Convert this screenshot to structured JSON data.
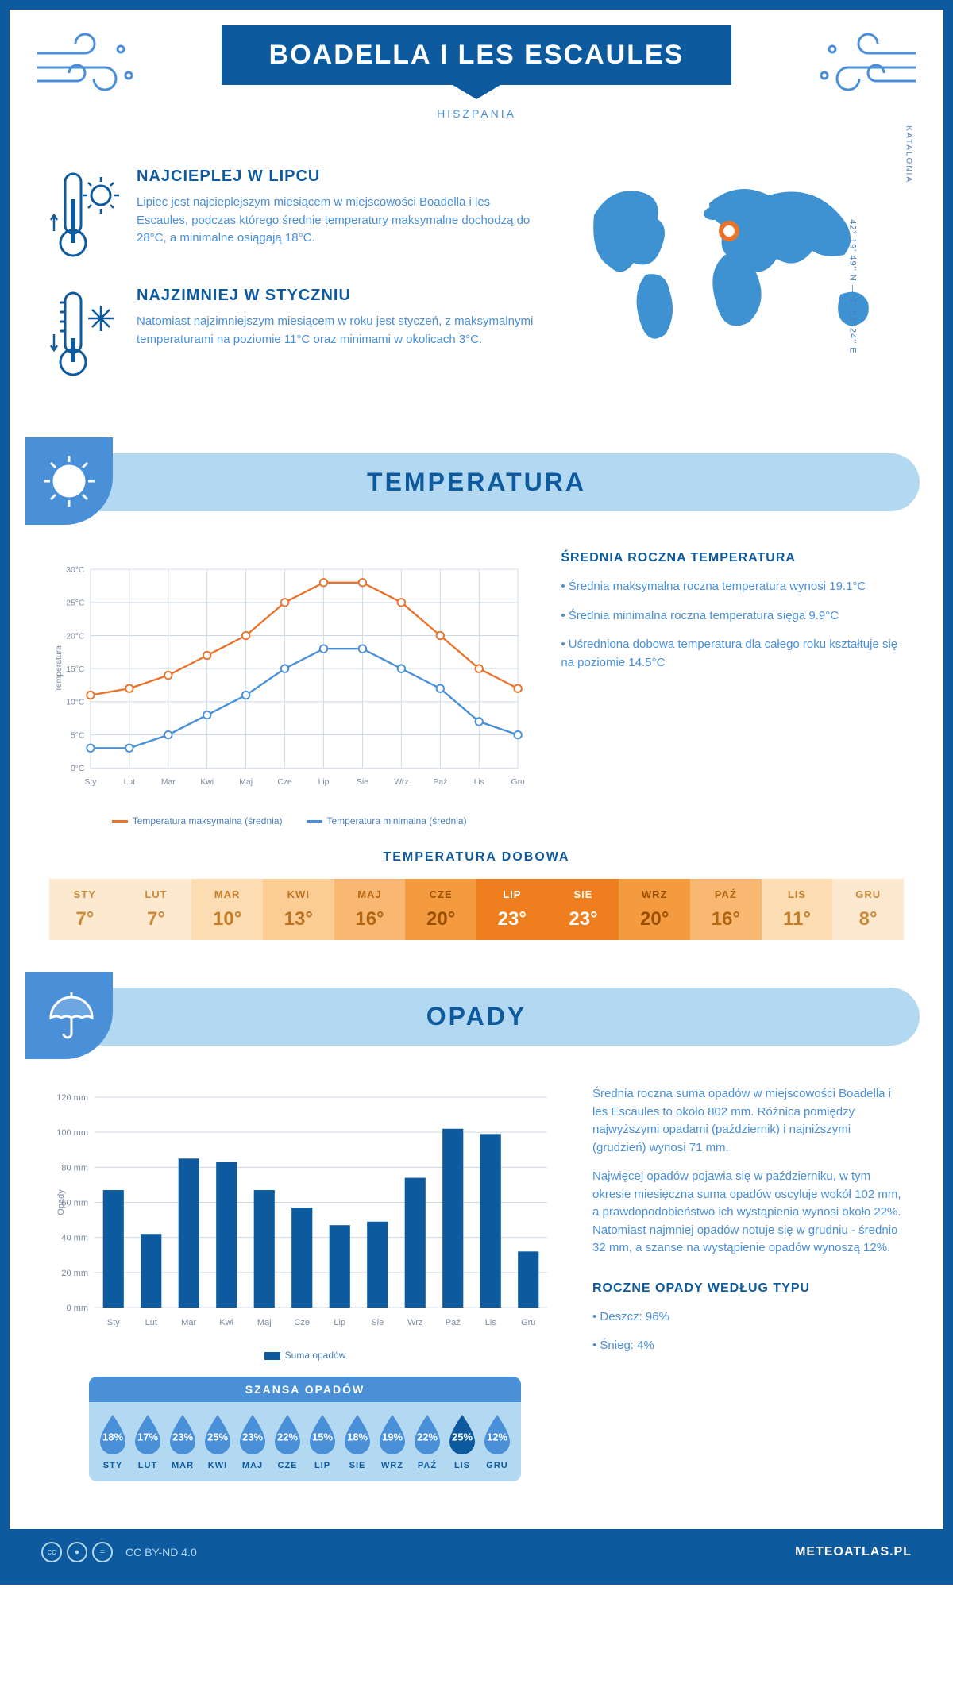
{
  "header": {
    "title": "BOADELLA I LES ESCAULES",
    "subtitle": "HISZPANIA"
  },
  "overview": {
    "warmest": {
      "heading": "NAJCIEPLEJ W LIPCU",
      "text": "Lipiec jest najcieplejszym miesiącem w miejscowości Boadella i les Escaules, podczas którego średnie temperatury maksymalne dochodzą do 28°C, a minimalne osiągają 18°C."
    },
    "coldest": {
      "heading": "NAJZIMNIEJ W STYCZNIU",
      "text": "Natomiast najzimniejszym miesiącem w roku jest styczeń, z maksymalnymi temperaturami na poziomie 11°C oraz minimami w okolicach 3°C."
    },
    "region": "KATALONIA",
    "coords": "42° 19' 49'' N — 2° 51' 24'' E"
  },
  "colors": {
    "primary": "#0d5a9e",
    "light_blue": "#4a90d9",
    "pale_blue": "#b3d9f2",
    "orange": "#e8742c",
    "grid": "#cfd9e5",
    "white": "#ffffff"
  },
  "temperature": {
    "section_title": "TEMPERATURA",
    "chart": {
      "type": "line",
      "ylabel": "Temperatura",
      "ylim": [
        0,
        30
      ],
      "ytick_step": 5,
      "ytick_suffix": "°C",
      "months": [
        "Sty",
        "Lut",
        "Mar",
        "Kwi",
        "Maj",
        "Cze",
        "Lip",
        "Sie",
        "Wrz",
        "Paź",
        "Lis",
        "Gru"
      ],
      "series": [
        {
          "name": "Temperatura maksymalna (średnia)",
          "color": "#e8742c",
          "values": [
            11,
            12,
            14,
            17,
            20,
            25,
            28,
            28,
            25,
            20,
            15,
            12
          ]
        },
        {
          "name": "Temperatura minimalna (średnia)",
          "color": "#4a90d9",
          "values": [
            3,
            3,
            5,
            8,
            11,
            15,
            18,
            18,
            15,
            12,
            7,
            5
          ]
        }
      ],
      "line_width": 2.5,
      "marker": "circle",
      "marker_size": 5,
      "grid_color": "#cfd9e5",
      "background": "#ffffff",
      "font_size_axis": 11
    },
    "side_heading": "ŚREDNIA ROCZNA TEMPERATURA",
    "side_bullets": [
      "Średnia maksymalna roczna temperatura wynosi 19.1°C",
      "Średnia minimalna roczna temperatura sięga 9.9°C",
      "Uśredniona dobowa temperatura dla całego roku kształtuje się na poziomie 14.5°C"
    ],
    "daily_heading": "TEMPERATURA DOBOWA",
    "daily": {
      "months": [
        "STY",
        "LUT",
        "MAR",
        "KWI",
        "MAJ",
        "CZE",
        "LIP",
        "SIE",
        "WRZ",
        "PAŹ",
        "LIS",
        "GRU"
      ],
      "values": [
        "7°",
        "7°",
        "10°",
        "13°",
        "16°",
        "20°",
        "23°",
        "23°",
        "20°",
        "16°",
        "11°",
        "8°"
      ],
      "bg_colors": [
        "#fde9cf",
        "#fde9cf",
        "#fcdcb3",
        "#fbcd95",
        "#f9b872",
        "#f49b3f",
        "#ef7f1e",
        "#ef7f1e",
        "#f49b3f",
        "#f9b872",
        "#fcdcb3",
        "#fde9cf"
      ],
      "text_colors": [
        "#c98a3a",
        "#c98a3a",
        "#c37d28",
        "#bb7220",
        "#b36512",
        "#9a4f00",
        "#ffffff",
        "#ffffff",
        "#9a4f00",
        "#b36512",
        "#c37d28",
        "#c98a3a"
      ]
    }
  },
  "rainfall": {
    "section_title": "OPADY",
    "chart": {
      "type": "bar",
      "ylabel": "Opady",
      "ylim": [
        0,
        120
      ],
      "ytick_step": 20,
      "ytick_suffix": " mm",
      "months": [
        "Sty",
        "Lut",
        "Mar",
        "Kwi",
        "Maj",
        "Cze",
        "Lip",
        "Sie",
        "Wrz",
        "Paź",
        "Lis",
        "Gru"
      ],
      "values": [
        67,
        42,
        85,
        83,
        67,
        57,
        47,
        49,
        74,
        102,
        99,
        32
      ],
      "bar_color": "#0d5a9e",
      "bar_width": 0.55,
      "grid_color": "#cfd9e5",
      "background": "#ffffff",
      "legend_label": "Suma opadów",
      "font_size_axis": 11
    },
    "side_text_1": "Średnia roczna suma opadów w miejscowości Boadella i les Escaules to około 802 mm. Różnica pomiędzy najwyższymi opadami (październik) i najniższymi (grudzień) wynosi 71 mm.",
    "side_text_2": "Najwięcej opadów pojawia się w październiku, w tym okresie miesięczna suma opadów oscyluje wokół 102 mm, a prawdopodobieństwo ich wystąpienia wynosi około 22%. Natomiast najmniej opadów notuje się w grudniu - średnio 32 mm, a szanse na wystąpienie opadów wynoszą 12%.",
    "chance_heading": "SZANSA OPADÓW",
    "chance": {
      "months": [
        "STY",
        "LUT",
        "MAR",
        "KWI",
        "MAJ",
        "CZE",
        "LIP",
        "SIE",
        "WRZ",
        "PAŹ",
        "LIS",
        "GRU"
      ],
      "pct": [
        "18%",
        "17%",
        "23%",
        "25%",
        "23%",
        "22%",
        "15%",
        "18%",
        "19%",
        "22%",
        "25%",
        "12%"
      ],
      "highlight_index": 10,
      "drop_fill": "#4a90d9",
      "drop_highlight": "#0d5a9e"
    },
    "type_heading": "ROCZNE OPADY WEDŁUG TYPU",
    "type_bullets": [
      "Deszcz: 96%",
      "Śnieg: 4%"
    ]
  },
  "footer": {
    "license": "CC BY-ND 4.0",
    "site": "METEOATLAS.PL"
  }
}
